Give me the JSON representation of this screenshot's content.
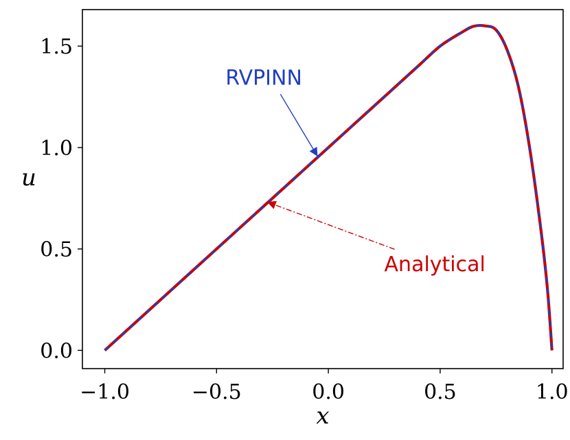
{
  "chart_data": {
    "type": "line",
    "xlabel": "x",
    "ylabel": "u",
    "xlim": [
      -1.1,
      1.05
    ],
    "ylim": [
      -0.09,
      1.68
    ],
    "x_ticks": [
      -1.0,
      -0.5,
      0.0,
      0.5,
      1.0
    ],
    "x_tick_labels": [
      "−1.0",
      "−0.5",
      "0.0",
      "0.5",
      "1.0"
    ],
    "y_ticks": [
      0.0,
      0.5,
      1.0,
      1.5
    ],
    "y_tick_labels": [
      "0.0",
      "0.5",
      "1.0",
      "1.5"
    ],
    "grid": false,
    "series": [
      {
        "name": "Analytical",
        "color": "#cc0000",
        "style": "solid",
        "x": [
          -1.0,
          -0.8,
          -0.6,
          -0.4,
          -0.2,
          0.0,
          0.2,
          0.4,
          0.5,
          0.6,
          0.65,
          0.7,
          0.75,
          0.8,
          0.85,
          0.9,
          0.95,
          0.98,
          1.0
        ],
        "y": [
          0.0,
          0.2,
          0.4,
          0.6,
          0.8,
          1.0,
          1.2,
          1.4,
          1.5,
          1.57,
          1.598,
          1.6,
          1.58,
          1.48,
          1.3,
          1.0,
          0.6,
          0.3,
          0.0
        ]
      },
      {
        "name": "RVPINN",
        "color": "#1f3fbf",
        "style": "dashed",
        "x": [
          -1.0,
          -0.8,
          -0.6,
          -0.4,
          -0.2,
          0.0,
          0.2,
          0.4,
          0.5,
          0.6,
          0.65,
          0.7,
          0.75,
          0.8,
          0.85,
          0.9,
          0.95,
          0.98,
          1.0
        ],
        "y": [
          0.0,
          0.2,
          0.4,
          0.6,
          0.8,
          1.0,
          1.2,
          1.4,
          1.5,
          1.57,
          1.598,
          1.6,
          1.58,
          1.48,
          1.3,
          1.0,
          0.6,
          0.3,
          0.0
        ]
      }
    ],
    "annotations": [
      {
        "text": "RVPINN",
        "color": "#1f3fbf",
        "text_at": [
          -0.46,
          1.31
        ],
        "points_to": [
          -0.05,
          0.96
        ]
      },
      {
        "text": "Analytical",
        "color": "#cc0000",
        "text_at": [
          0.25,
          0.39
        ],
        "points_to": [
          -0.27,
          0.73
        ]
      }
    ]
  }
}
